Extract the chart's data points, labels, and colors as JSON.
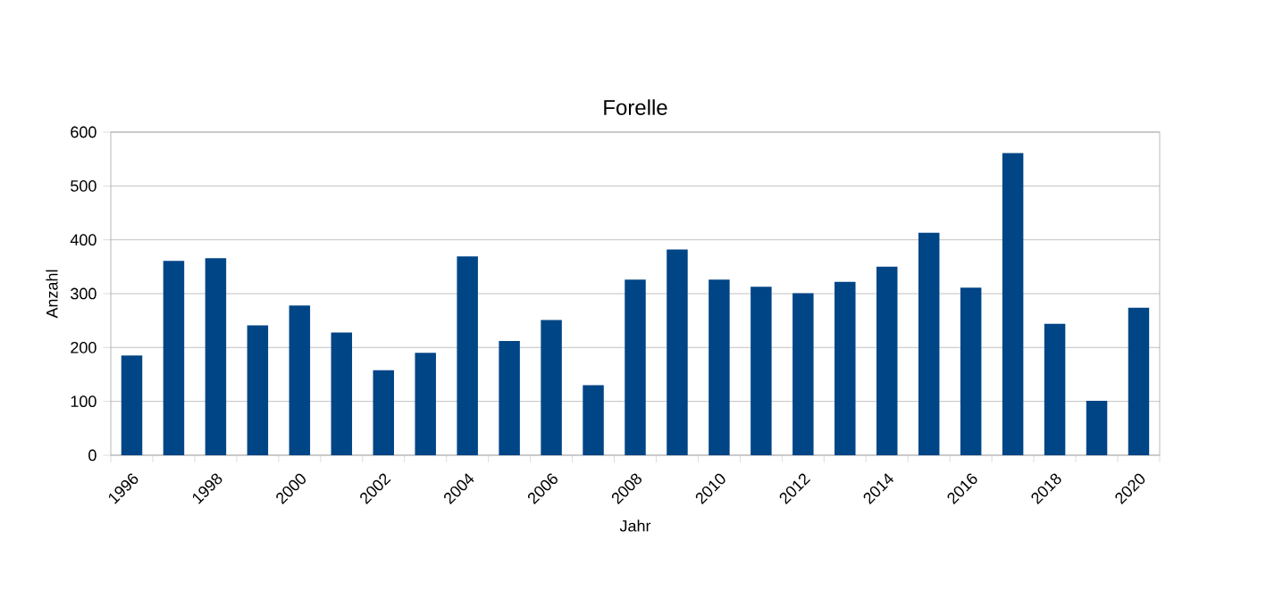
{
  "chart_data": {
    "type": "bar",
    "title": "Forelle",
    "xlabel": "Jahr",
    "ylabel": "Anzahl",
    "categories": [
      "1996",
      null,
      "1998",
      null,
      "2000",
      null,
      "2002",
      null,
      "2004",
      null,
      "2006",
      null,
      "2008",
      null,
      "2010",
      null,
      "2012",
      null,
      "2014",
      null,
      "2016",
      null,
      "2018",
      null,
      "2020"
    ],
    "values": [
      185,
      361,
      366,
      241,
      278,
      228,
      158,
      190,
      369,
      212,
      251,
      130,
      326,
      382,
      326,
      313,
      301,
      322,
      350,
      413,
      311,
      561,
      244,
      101,
      274
    ],
    "color": "#004586",
    "ylim": [
      0,
      600
    ],
    "yticks": [
      0,
      100,
      200,
      300,
      400,
      500,
      600
    ],
    "grid": "y"
  }
}
